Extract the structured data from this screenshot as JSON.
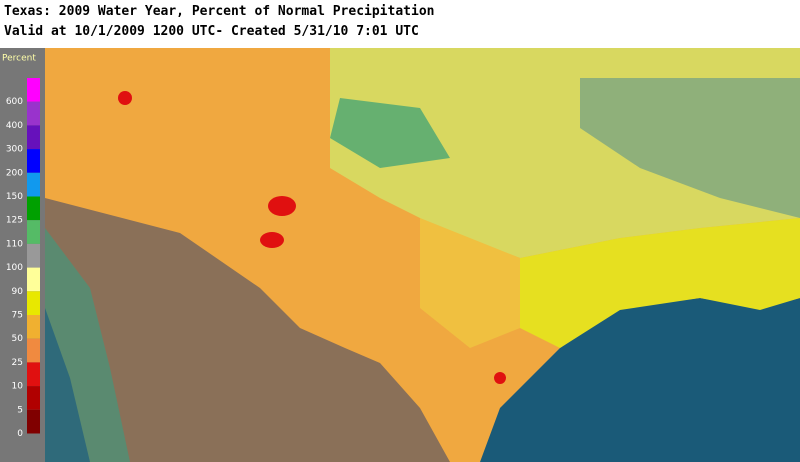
{
  "header": {
    "title": "Texas: 2009 Water Year, Percent of Normal Precipitation",
    "subtitle": "Valid at 10/1/2009 1200 UTC- Created 5/31/10 7:01 UTC"
  },
  "legend": {
    "title": "Percent",
    "items": [
      {
        "label": "600",
        "color": "#ff00ff"
      },
      {
        "label": "400",
        "color": "#9933cc"
      },
      {
        "label": "300",
        "color": "#6611bb"
      },
      {
        "label": "200",
        "color": "#0000ff"
      },
      {
        "label": "150",
        "color": "#1199ee"
      },
      {
        "label": "125",
        "color": "#00a000"
      },
      {
        "label": "110",
        "color": "#55bb66"
      },
      {
        "label": "100",
        "color": "#999999"
      },
      {
        "label": "90",
        "color": "#ffff99"
      },
      {
        "label": "75",
        "color": "#e8e800"
      },
      {
        "label": "50",
        "color": "#f0b030"
      },
      {
        "label": "25",
        "color": "#f08a40"
      },
      {
        "label": "10",
        "color": "#e01010"
      },
      {
        "label": "5",
        "color": "#b00000"
      },
      {
        "label": "0",
        "color": "#800000"
      }
    ]
  }
}
